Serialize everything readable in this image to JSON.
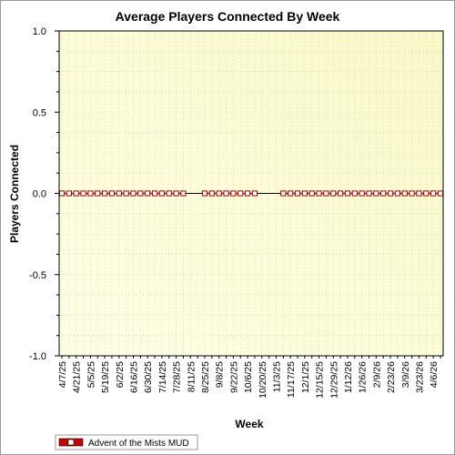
{
  "chart_data": {
    "type": "line",
    "title": "Average Players Connected By Week",
    "xlabel": "Week",
    "ylabel": "Players Connected",
    "ylim": [
      -1.0,
      1.0
    ],
    "yticks": [
      "1.0",
      "0.5",
      "0.0",
      "-0.5",
      "-1.0"
    ],
    "xtick_labels": [
      "4/7/25",
      "4/21/25",
      "5/5/25",
      "5/19/25",
      "6/2/25",
      "6/16/25",
      "6/30/25",
      "7/14/25",
      "7/28/25",
      "8/11/25",
      "8/25/25",
      "9/8/25",
      "9/22/25",
      "10/6/25",
      "10/20/25",
      "11/3/25",
      "11/17/25",
      "12/1/25",
      "12/15/25",
      "12/29/25",
      "1/12/26",
      "1/26/26",
      "2/9/26",
      "2/23/26",
      "3/9/26",
      "3/23/26",
      "4/6/26"
    ],
    "grid": true,
    "legend_position": "bottom-left",
    "series": [
      {
        "name": "Advent of the Mists MUD",
        "color": "#cc0000",
        "values": [
          0,
          0,
          0,
          0,
          0,
          0,
          0,
          0,
          0,
          0,
          0,
          0,
          0,
          0,
          0,
          0,
          0,
          0,
          null,
          null,
          0,
          0,
          0,
          0,
          0,
          0,
          0,
          0,
          null,
          null,
          null,
          0,
          0,
          0,
          0,
          0,
          0,
          0,
          0,
          0,
          0,
          0,
          0,
          0,
          0,
          0,
          0,
          0,
          0,
          0,
          0,
          0,
          0,
          0
        ]
      }
    ]
  }
}
